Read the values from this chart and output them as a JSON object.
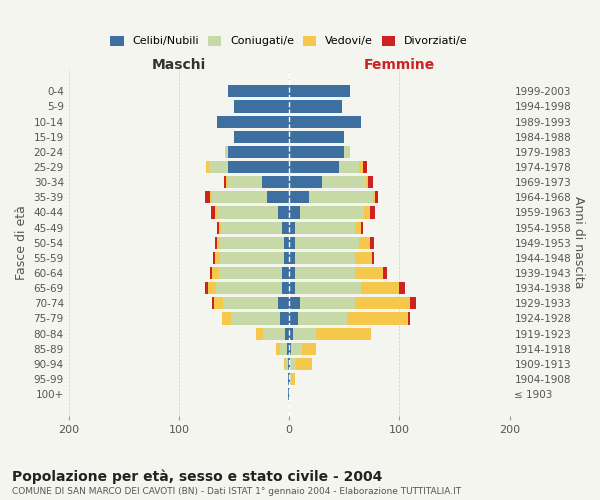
{
  "age_groups": [
    "100+",
    "95-99",
    "90-94",
    "85-89",
    "80-84",
    "75-79",
    "70-74",
    "65-69",
    "60-64",
    "55-59",
    "50-54",
    "45-49",
    "40-44",
    "35-39",
    "30-34",
    "25-29",
    "20-24",
    "15-19",
    "10-14",
    "5-9",
    "0-4"
  ],
  "birth_years": [
    "≤ 1903",
    "1904-1908",
    "1909-1913",
    "1914-1918",
    "1919-1923",
    "1924-1928",
    "1929-1933",
    "1934-1938",
    "1939-1943",
    "1944-1948",
    "1949-1953",
    "1954-1958",
    "1959-1963",
    "1964-1968",
    "1969-1973",
    "1974-1978",
    "1979-1983",
    "1984-1988",
    "1989-1993",
    "1994-1998",
    "1999-2003"
  ],
  "maschi": {
    "celibi": [
      1,
      1,
      1,
      2,
      4,
      8,
      10,
      6,
      6,
      5,
      5,
      6,
      10,
      20,
      25,
      55,
      55,
      50,
      65,
      50,
      55
    ],
    "coniugati": [
      0,
      0,
      2,
      6,
      20,
      45,
      50,
      60,
      58,
      58,
      58,
      56,
      55,
      50,
      30,
      18,
      3,
      0,
      0,
      0,
      0
    ],
    "vedovi": [
      0,
      0,
      2,
      4,
      6,
      8,
      8,
      8,
      6,
      4,
      2,
      2,
      2,
      2,
      2,
      2,
      0,
      0,
      0,
      0,
      0
    ],
    "divorziati": [
      0,
      0,
      0,
      0,
      0,
      0,
      2,
      2,
      2,
      2,
      2,
      1,
      4,
      4,
      2,
      0,
      0,
      0,
      0,
      0,
      0
    ]
  },
  "femmine": {
    "nubili": [
      0,
      1,
      1,
      2,
      4,
      8,
      10,
      5,
      5,
      5,
      5,
      5,
      10,
      18,
      30,
      45,
      50,
      50,
      65,
      48,
      55
    ],
    "coniugate": [
      0,
      1,
      5,
      10,
      20,
      45,
      50,
      60,
      55,
      55,
      58,
      55,
      58,
      58,
      40,
      18,
      5,
      0,
      0,
      0,
      0
    ],
    "vedove": [
      1,
      3,
      15,
      12,
      50,
      55,
      50,
      35,
      25,
      15,
      10,
      5,
      5,
      2,
      2,
      4,
      0,
      0,
      0,
      0,
      0
    ],
    "divorziate": [
      0,
      0,
      0,
      0,
      0,
      2,
      5,
      5,
      4,
      2,
      4,
      2,
      5,
      3,
      4,
      4,
      0,
      0,
      0,
      0,
      0
    ]
  },
  "colors": {
    "celibi_nubili": "#3d6fa0",
    "coniugati": "#c8d9a8",
    "vedovi": "#f5c84c",
    "divorziati": "#cc2222"
  },
  "title": "Popolazione per età, sesso e stato civile - 2004",
  "subtitle": "COMUNE DI SAN MARCO DEI CAVOTI (BN) - Dati ISTAT 1° gennaio 2004 - Elaborazione TUTTITALIA.IT",
  "xlabel_left": "Maschi",
  "xlabel_right": "Femmine",
  "ylabel_left": "Fasce di età",
  "ylabel_right": "Anni di nascita",
  "legend_labels": [
    "Celibi/Nubili",
    "Coniugati/e",
    "Vedovi/e",
    "Divorziati/e"
  ],
  "xlim": 200,
  "bg_color": "#f5f5f0",
  "grid_color": "#cccccc",
  "bar_height": 0.8
}
